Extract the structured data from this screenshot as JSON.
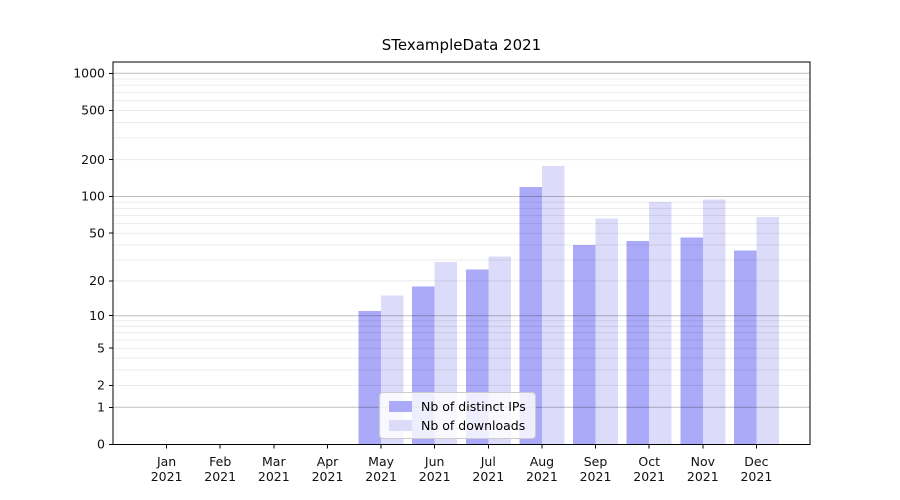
{
  "chart_data": {
    "type": "bar",
    "title": "STexampleData 2021",
    "categories": [
      "Jan",
      "Feb",
      "Mar",
      "Apr",
      "May",
      "Jun",
      "Jul",
      "Aug",
      "Sep",
      "Oct",
      "Nov",
      "Dec"
    ],
    "x_tick_second_line": "2021",
    "series": [
      {
        "name": "Nb of distinct IPs",
        "color": "#aaaaf9",
        "values": [
          0,
          0,
          0,
          0,
          11,
          18,
          25,
          120,
          40,
          43,
          46,
          36
        ]
      },
      {
        "name": "Nb of downloads",
        "color": "#dcdcfa",
        "values": [
          0,
          0,
          0,
          0,
          15,
          29,
          32,
          178,
          66,
          90,
          95,
          68
        ]
      }
    ],
    "y_axis": {
      "scale": "log10(value+1)",
      "ticks": [
        0,
        1,
        2,
        5,
        10,
        20,
        50,
        100,
        200,
        500,
        1000
      ],
      "major_gridlines": [
        1,
        10,
        100,
        1000
      ],
      "minor_gridlines": [
        2,
        3,
        4,
        5,
        6,
        7,
        8,
        9,
        20,
        30,
        40,
        50,
        60,
        70,
        80,
        90,
        200,
        300,
        400,
        500,
        600,
        700,
        800,
        900
      ],
      "ylim": [
        0,
        1000
      ]
    },
    "legend": {
      "position": "lower-center"
    },
    "grid": true
  },
  "colors": {
    "bar_distinct_ips": "#aaaaf9",
    "bar_downloads": "#dcdcfa",
    "major_grid": "rgba(0,0,0,0.25)",
    "minor_grid": "rgba(0,0,0,0.08)",
    "axis_line": "#000000",
    "tick_text": "#111111",
    "background": "#ffffff",
    "legend_border": "#cccccc"
  }
}
